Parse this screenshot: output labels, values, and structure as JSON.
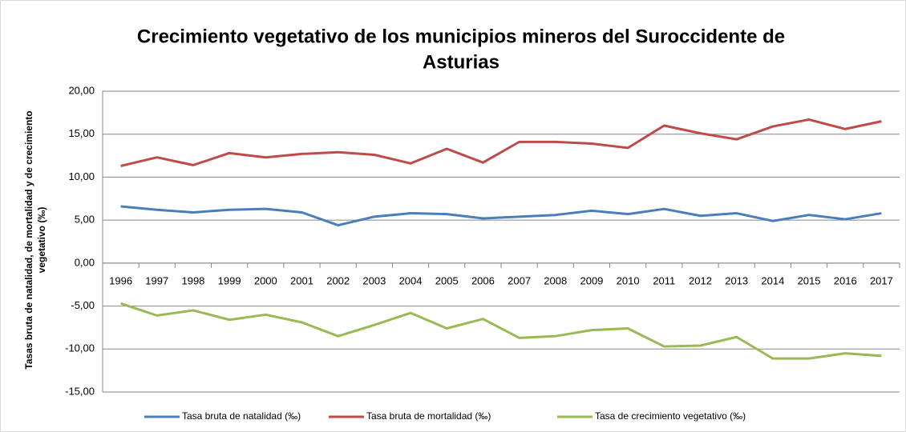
{
  "chart_data": {
    "type": "line",
    "title": [
      "Crecimiento vegetativo de los municipios mineros del Suroccidente de",
      "Asturias"
    ],
    "ylabel": [
      "Tasas bruta de natalidad, de mortalidad y de crecimiento",
      "vegetativo (‰)"
    ],
    "categories": [
      "1996",
      "1997",
      "1998",
      "1999",
      "2000",
      "2001",
      "2002",
      "2003",
      "2004",
      "2005",
      "2006",
      "2007",
      "2008",
      "2009",
      "2010",
      "2011",
      "2012",
      "2013",
      "2014",
      "2015",
      "2016",
      "2017"
    ],
    "series": [
      {
        "name": "Tasa bruta de natalidad (‰)",
        "color": "#4a7ebb",
        "values": [
          6.6,
          6.2,
          5.9,
          6.2,
          6.3,
          5.9,
          4.4,
          5.4,
          5.8,
          5.7,
          5.2,
          5.4,
          5.6,
          6.1,
          5.7,
          6.3,
          5.5,
          5.8,
          4.9,
          5.6,
          5.1,
          5.8
        ]
      },
      {
        "name": "Tasa bruta de mortalidad (‰)",
        "color": "#be4b48",
        "values": [
          11.3,
          12.3,
          11.4,
          12.8,
          12.3,
          12.7,
          12.9,
          12.6,
          11.6,
          13.3,
          11.7,
          14.1,
          14.1,
          13.9,
          13.4,
          16.0,
          15.1,
          14.4,
          15.9,
          16.7,
          15.6,
          16.5
        ]
      },
      {
        "name": "Tasa de crecimiento vegetativo (‰)",
        "color": "#98b954",
        "values": [
          -4.7,
          -6.1,
          -5.5,
          -6.6,
          -6.0,
          -6.9,
          -8.5,
          -7.2,
          -5.8,
          -7.6,
          -6.5,
          -8.7,
          -8.5,
          -7.8,
          -7.6,
          -9.7,
          -9.6,
          -8.6,
          -11.1,
          -11.1,
          -10.5,
          -10.8
        ]
      }
    ],
    "ylim": [
      -15,
      20
    ],
    "yticks": [
      {
        "value": -15,
        "label": "-15,00"
      },
      {
        "value": -10,
        "label": "-10,00"
      },
      {
        "value": -5,
        "label": "-5,00"
      },
      {
        "value": 0,
        "label": "0,00"
      },
      {
        "value": 5,
        "label": "5,00"
      },
      {
        "value": 10,
        "label": "10,00"
      },
      {
        "value": 15,
        "label": "15,00"
      },
      {
        "value": 20,
        "label": "20,00"
      }
    ],
    "grid": true,
    "legend": "bottom"
  }
}
